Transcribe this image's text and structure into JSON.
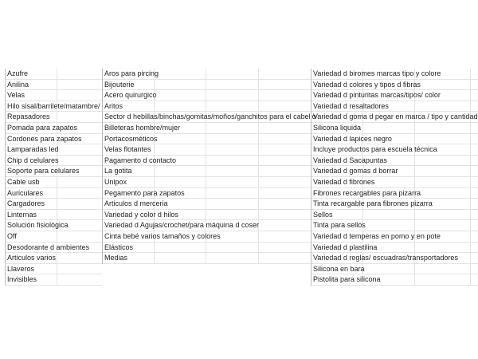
{
  "columns": [
    {
      "items": [
        "Azufre",
        "Anilina",
        "Velas",
        "Hilo sisal/barrilete/matambre/",
        "Repasadores",
        "Pomada para zapatos",
        "Cordones para zapatos",
        "Lamparadas led",
        "Chip d celulares",
        "Soporte para celulares",
        "Cable usb",
        "Auriculares",
        "Cargadores",
        "Linternas",
        "Solución fisiológica",
        "Off",
        "Desodorante d ambientes",
        "Articulos varios",
        "Llaveros",
        "Invisibles"
      ]
    },
    {
      "items": [
        "Aros para pircing",
        "Bijouterie",
        "Acero quirurgico",
        "Aritos",
        "Sector d hebillas/binchas/gomitas/moños/ganchitos para el cabello",
        "Billeteras hombre/mujer",
        "Portacosméticos",
        "Velas flotantes",
        "Pagamento d contacto",
        "La gotita",
        "Unipox",
        "Pegamento para zapatos",
        "Articulos d merceria",
        "Variedad y color d hilos",
        "Variedad d Agujas/crochet/para máquina d coser",
        "Cinta bebé varios tamaños y colores",
        "Elásticos",
        "Medias"
      ]
    },
    {
      "items": [
        "Variedad d biromes  marcas tipo y colore",
        "Variedad d colores y tipos d fibras",
        "Variedad d pinturitas marcas/tipos/ color",
        "Variedad d resaltadores",
        "Variedad d goma d pegar en marca / tipo y cantidad",
        "Silicona liquida",
        "Variedad d lapices negro",
        "Incluye productos para escuela técnica",
        "Variedad d Sacapuntas",
        "Variedad d gomas d borrar",
        "Variedad d fibrones",
        "Fibrones recargables para pizarra",
        "Tinta recargable para fibrones pizarra",
        "Sellos",
        "Tinta para sellos",
        "Variedad d temperas en pomo y en pote",
        "Variedad d plastilina",
        "Variedad d reglas/ escuadras/transportadores",
        "Silicona en bara",
        "Pistolita para silicona"
      ]
    }
  ]
}
